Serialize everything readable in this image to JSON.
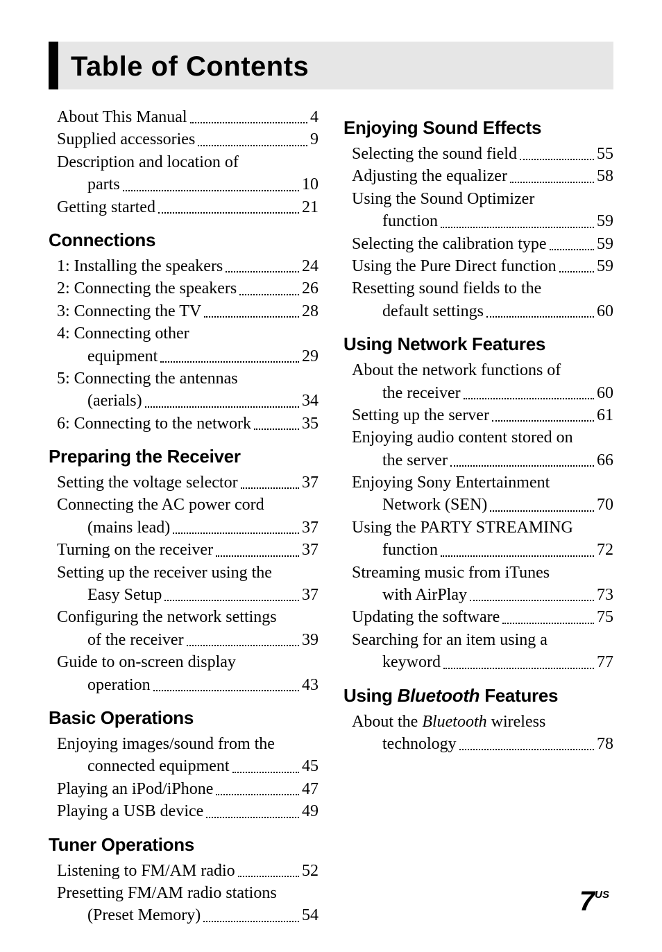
{
  "title": "Table of Contents",
  "page_number": "7",
  "page_suffix": "US",
  "left_column": [
    {
      "heading": null,
      "items": [
        {
          "lines": [
            "About This Manual"
          ],
          "page": "4"
        },
        {
          "lines": [
            "Supplied accessories"
          ],
          "page": "9"
        },
        {
          "lines": [
            "Description and location of",
            "parts"
          ],
          "page": "10"
        },
        {
          "lines": [
            "Getting started"
          ],
          "page": "21"
        }
      ]
    },
    {
      "heading": "Connections",
      "items": [
        {
          "lines": [
            "1: Installing the speakers"
          ],
          "page": "24"
        },
        {
          "lines": [
            "2: Connecting the speakers"
          ],
          "page": "26"
        },
        {
          "lines": [
            "3: Connecting the TV"
          ],
          "page": "28"
        },
        {
          "lines": [
            "4: Connecting other",
            "equipment"
          ],
          "page": "29"
        },
        {
          "lines": [
            "5: Connecting the antennas",
            "(aerials)"
          ],
          "page": "34"
        },
        {
          "lines": [
            "6: Connecting to the network"
          ],
          "page": "35"
        }
      ]
    },
    {
      "heading": "Preparing the Receiver",
      "items": [
        {
          "lines": [
            "Setting the voltage selector"
          ],
          "page": "37"
        },
        {
          "lines": [
            "Connecting the AC power cord",
            "(mains lead)"
          ],
          "page": "37"
        },
        {
          "lines": [
            "Turning on the receiver"
          ],
          "page": "37"
        },
        {
          "lines": [
            "Setting up the receiver using the",
            "Easy Setup"
          ],
          "page": "37"
        },
        {
          "lines": [
            "Configuring the network settings",
            "of the receiver"
          ],
          "page": "39"
        },
        {
          "lines": [
            "Guide to on-screen display",
            "operation"
          ],
          "page": "43"
        }
      ]
    },
    {
      "heading": "Basic Operations",
      "items": [
        {
          "lines": [
            "Enjoying images/sound from the",
            "connected equipment"
          ],
          "page": "45"
        },
        {
          "lines": [
            "Playing an iPod/iPhone"
          ],
          "page": "47"
        },
        {
          "lines": [
            "Playing a USB device"
          ],
          "page": "49"
        }
      ]
    },
    {
      "heading": "Tuner Operations",
      "items": [
        {
          "lines": [
            "Listening to FM/AM radio"
          ],
          "page": "52"
        },
        {
          "lines": [
            "Presetting FM/AM radio stations",
            "(Preset Memory)"
          ],
          "page": "54"
        }
      ]
    }
  ],
  "right_column": [
    {
      "heading": "Enjoying Sound Effects",
      "items": [
        {
          "lines": [
            "Selecting the sound field"
          ],
          "page": "55"
        },
        {
          "lines": [
            "Adjusting the equalizer"
          ],
          "page": "58"
        },
        {
          "lines": [
            "Using the Sound Optimizer",
            "function"
          ],
          "page": "59"
        },
        {
          "lines": [
            "Selecting the calibration type"
          ],
          "page": "59"
        },
        {
          "lines": [
            "Using the Pure Direct function"
          ],
          "page": "59"
        },
        {
          "lines": [
            "Resetting sound fields to the",
            "default settings"
          ],
          "page": "60"
        }
      ]
    },
    {
      "heading": "Using Network Features",
      "items": [
        {
          "lines": [
            "About the network functions of",
            "the receiver"
          ],
          "page": "60"
        },
        {
          "lines": [
            "Setting up the server"
          ],
          "page": "61"
        },
        {
          "lines": [
            "Enjoying audio content stored on",
            "the server"
          ],
          "page": "66"
        },
        {
          "lines": [
            "Enjoying Sony Entertainment",
            "Network (SEN)"
          ],
          "page": "70"
        },
        {
          "lines": [
            "Using the PARTY STREAMING",
            "function"
          ],
          "page": "72"
        },
        {
          "lines": [
            "Streaming music from iTunes",
            "with AirPlay"
          ],
          "page": "73"
        },
        {
          "lines": [
            "Updating the software"
          ],
          "page": "75"
        },
        {
          "lines": [
            "Searching for an item using a",
            "keyword"
          ],
          "page": "77"
        }
      ]
    },
    {
      "heading_html": "Using <span class=\"italic\">Bluetooth</span> Features",
      "items": [
        {
          "lines_html": [
            "About the <i>Bluetooth</i> wireless",
            "technology"
          ],
          "page": "78"
        }
      ]
    }
  ]
}
